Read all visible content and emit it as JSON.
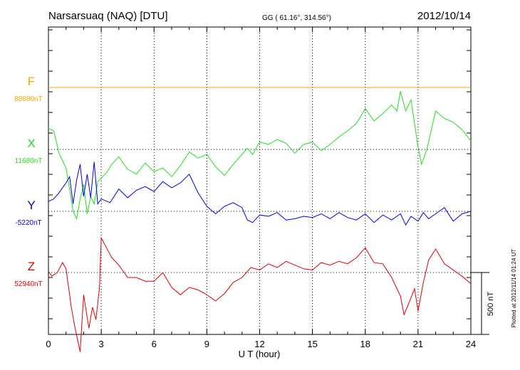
{
  "header": {
    "station": "Narsarsuaq (NAQ)  [DTU]",
    "coords": "GG ( 61.16°, 314.56°)",
    "date": "2012/10/14"
  },
  "side_note": "Plotted at 2012/11/14 01:24 UT",
  "colors": {
    "F": "#f5a800",
    "X": "#1fe01f",
    "Y": "#0000e0",
    "Z": "#e00000",
    "axis": "#000000"
  },
  "chart_data": {
    "type": "line",
    "xlabel": "U T (hour)",
    "xlim": [
      0,
      24
    ],
    "xticks": [
      0,
      3,
      6,
      9,
      12,
      15,
      18,
      21,
      24
    ],
    "xtick_labels": [
      "0",
      "3",
      "6",
      "9",
      "12",
      "15",
      "18",
      "21",
      "24"
    ],
    "scale_bar_label": "500 nT",
    "series": [
      {
        "name": "F",
        "baseline_label": "88880nT",
        "x": [
          0,
          24
        ],
        "y": [
          0,
          0
        ]
      },
      {
        "name": "X",
        "baseline_label": "11680nT",
        "x": [
          0,
          0.3,
          0.6,
          1.0,
          1.2,
          1.4,
          1.6,
          1.8,
          2.0,
          2.2,
          2.4,
          2.6,
          2.8,
          3.0,
          3.3,
          3.6,
          4.0,
          4.5,
          5.0,
          5.5,
          6.0,
          6.5,
          7.0,
          7.5,
          8.0,
          8.5,
          9.0,
          9.5,
          10.0,
          10.5,
          11.0,
          11.3,
          11.6,
          12.0,
          12.5,
          13.0,
          13.5,
          14.0,
          14.5,
          15.0,
          15.5,
          16.0,
          16.5,
          17.0,
          17.5,
          18.0,
          18.5,
          19.0,
          19.5,
          19.8,
          20.0,
          20.3,
          20.6,
          21.0,
          21.2,
          21.5,
          22.0,
          22.5,
          23.0,
          23.5,
          24.0
        ],
        "y": [
          170,
          150,
          -30,
          -150,
          -320,
          -500,
          -560,
          -400,
          -280,
          -520,
          -380,
          -440,
          -260,
          -230,
          -190,
          -120,
          -60,
          -160,
          -200,
          -110,
          -180,
          -150,
          -220,
          -130,
          -20,
          -70,
          -40,
          -140,
          -210,
          -120,
          -40,
          10,
          -40,
          60,
          40,
          80,
          50,
          -30,
          40,
          60,
          -10,
          40,
          100,
          150,
          210,
          330,
          230,
          290,
          360,
          310,
          470,
          310,
          400,
          20,
          -120,
          0,
          310,
          250,
          220,
          160,
          70
        ]
      },
      {
        "name": "Y",
        "baseline_label": "-5220nT",
        "x": [
          0,
          0.3,
          0.6,
          1.0,
          1.2,
          1.4,
          1.6,
          1.8,
          2.0,
          2.2,
          2.4,
          2.6,
          2.8,
          3.0,
          3.5,
          4.0,
          4.5,
          5.0,
          5.5,
          6.0,
          6.5,
          7.0,
          7.5,
          8.0,
          8.5,
          9.0,
          9.5,
          10.0,
          10.5,
          11.0,
          11.3,
          11.6,
          12.0,
          12.5,
          13.0,
          13.5,
          14.0,
          14.5,
          15.0,
          15.5,
          16.0,
          16.5,
          17.0,
          17.5,
          18.0,
          18.5,
          19.0,
          19.5,
          20.0,
          20.3,
          20.6,
          21.0,
          21.3,
          21.6,
          22.0,
          22.5,
          23.0,
          23.5,
          24.0
        ],
        "y": [
          80,
          100,
          150,
          230,
          280,
          60,
          250,
          380,
          120,
          300,
          110,
          400,
          60,
          100,
          70,
          180,
          110,
          170,
          200,
          160,
          240,
          190,
          230,
          300,
          150,
          40,
          -20,
          40,
          70,
          30,
          -70,
          -90,
          -30,
          -40,
          -10,
          -70,
          -60,
          -40,
          -50,
          -20,
          -60,
          -10,
          -50,
          -70,
          -20,
          -90,
          -30,
          -70,
          -20,
          -110,
          -40,
          -80,
          -10,
          -60,
          -20,
          30,
          -80,
          -20,
          0
        ]
      },
      {
        "name": "Z",
        "baseline_label": "52940nT",
        "x": [
          0,
          0.2,
          0.5,
          0.8,
          1.0,
          1.3,
          1.5,
          1.8,
          2.0,
          2.3,
          2.5,
          2.7,
          2.9,
          3.0,
          3.3,
          3.6,
          4.0,
          4.5,
          5.0,
          5.5,
          6.0,
          6.5,
          7.0,
          7.5,
          8.0,
          8.5,
          9.0,
          9.5,
          10.0,
          10.5,
          11.0,
          11.5,
          12.0,
          12.5,
          13.0,
          13.5,
          14.0,
          14.5,
          15.0,
          15.5,
          16.0,
          16.5,
          17.0,
          17.5,
          18.0,
          18.5,
          19.0,
          19.5,
          20.0,
          20.2,
          20.5,
          20.8,
          21.0,
          21.3,
          21.6,
          22.0,
          22.5,
          23.0,
          23.5,
          24.0
        ],
        "y": [
          10,
          -30,
          0,
          80,
          30,
          -280,
          -440,
          -640,
          -180,
          -450,
          -280,
          -380,
          -120,
          280,
          200,
          120,
          60,
          -40,
          -40,
          -70,
          -70,
          0,
          -120,
          -180,
          -120,
          -140,
          -180,
          -230,
          -170,
          -80,
          -40,
          40,
          20,
          70,
          40,
          90,
          60,
          30,
          20,
          80,
          60,
          90,
          70,
          120,
          200,
          80,
          70,
          -40,
          -190,
          -340,
          -240,
          -130,
          -310,
          -80,
          100,
          190,
          70,
          20,
          -30,
          -90
        ]
      }
    ]
  }
}
